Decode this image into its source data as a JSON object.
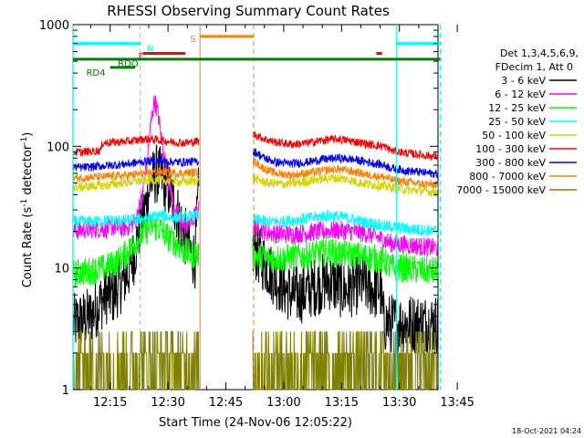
{
  "chart_data": {
    "type": "line",
    "title": "RHESSI Observing Summary Count Rates",
    "xlabel": "Start Time (24-Nov-06 12:05:22)",
    "ylabel_parts": [
      "Count Rate (s",
      "-1",
      " detector",
      "-1",
      ")"
    ],
    "yscale": "log",
    "ylim": [
      1,
      1000
    ],
    "xlim_min": [
      5.37,
      100.0
    ],
    "x_ticks": [
      {
        "min": 15,
        "label": "12:15"
      },
      {
        "min": 30,
        "label": "12:30"
      },
      {
        "min": 45,
        "label": "12:45"
      },
      {
        "min": 60,
        "label": "13:00"
      },
      {
        "min": 75,
        "label": "13:15"
      },
      {
        "min": 90,
        "label": "13:30"
      },
      {
        "min": 105,
        "label": "13:45"
      }
    ],
    "y_ticks": [
      {
        "v": 1,
        "label": "1"
      },
      {
        "v": 10,
        "label": "10"
      },
      {
        "v": 100,
        "label": "100"
      },
      {
        "v": 1000,
        "label": "1000"
      }
    ],
    "legend_header": [
      "Det 1,3,4,5,6,9,",
      "FDecim 1, Att 0"
    ],
    "footer_date": "18-Oct-2021 04:24",
    "gap": [
      38,
      52
    ],
    "series": [
      {
        "name": "3 - 6 keV",
        "color": "#000000",
        "points": [
          [
            5.4,
            3.5
          ],
          [
            10,
            4
          ],
          [
            12,
            5
          ],
          [
            14,
            6
          ],
          [
            16,
            6
          ],
          [
            17,
            7
          ],
          [
            18,
            7.5
          ],
          [
            19.5,
            9
          ],
          [
            21,
            12
          ],
          [
            22.5,
            20
          ],
          [
            24,
            30
          ],
          [
            25.5,
            50
          ],
          [
            27,
            60
          ],
          [
            28.5,
            55
          ],
          [
            30,
            45
          ],
          [
            31.5,
            35
          ],
          [
            33,
            25
          ],
          [
            34.5,
            18
          ],
          [
            36,
            13
          ],
          [
            37,
            12
          ],
          [
            37.9,
            40
          ],
          [
            52.5,
            14
          ],
          [
            54,
            12
          ],
          [
            56,
            10
          ],
          [
            58,
            8
          ],
          [
            60,
            7
          ],
          [
            62,
            6
          ],
          [
            64,
            6
          ],
          [
            66,
            6.5
          ],
          [
            68,
            7
          ],
          [
            70,
            7.5
          ],
          [
            72,
            7.8
          ],
          [
            74,
            7
          ],
          [
            76,
            6.5
          ],
          [
            78,
            7
          ],
          [
            80,
            7.5
          ],
          [
            82,
            7
          ],
          [
            84,
            6.5
          ],
          [
            85,
            7
          ],
          [
            86,
            3.5
          ],
          [
            88,
            3.5
          ],
          [
            92,
            3.5
          ],
          [
            96,
            3.5
          ],
          [
            100,
            3.5
          ]
        ],
        "noise": 0.25
      },
      {
        "name": "6 - 12 keV",
        "color": "#ff00ff",
        "points": [
          [
            5.4,
            20
          ],
          [
            10,
            21
          ],
          [
            14,
            21
          ],
          [
            16,
            22
          ],
          [
            18,
            21
          ],
          [
            20,
            22
          ],
          [
            21.5,
            24
          ],
          [
            23,
            35
          ],
          [
            24.5,
            70
          ],
          [
            25.5,
            150
          ],
          [
            26.5,
            240
          ],
          [
            27.5,
            180
          ],
          [
            28.5,
            100
          ],
          [
            30,
            55
          ],
          [
            31.5,
            32
          ],
          [
            33,
            25
          ],
          [
            34.5,
            22
          ],
          [
            36,
            24
          ],
          [
            37.9,
            30
          ],
          [
            52.5,
            22
          ],
          [
            55,
            20
          ],
          [
            58,
            19
          ],
          [
            62,
            19
          ],
          [
            66,
            19.5
          ],
          [
            70,
            20
          ],
          [
            74,
            20.5
          ],
          [
            78,
            20
          ],
          [
            82,
            19
          ],
          [
            86,
            17
          ],
          [
            88,
            16
          ],
          [
            92,
            15.5
          ],
          [
            96,
            15
          ],
          [
            100,
            14.5
          ]
        ],
        "noise": 0.08
      },
      {
        "name": "12 - 25 keV",
        "color": "#00ff00",
        "points": [
          [
            5.4,
            9
          ],
          [
            10,
            9.5
          ],
          [
            14,
            10
          ],
          [
            16,
            11
          ],
          [
            18,
            12
          ],
          [
            20,
            14
          ],
          [
            22,
            17
          ],
          [
            24,
            20
          ],
          [
            26,
            22
          ],
          [
            28,
            21
          ],
          [
            30,
            18
          ],
          [
            32,
            16
          ],
          [
            34,
            14
          ],
          [
            36,
            13
          ],
          [
            37.9,
            13
          ],
          [
            52.5,
            12.5
          ],
          [
            56,
            12
          ],
          [
            60,
            12
          ],
          [
            64,
            12.5
          ],
          [
            68,
            13
          ],
          [
            72,
            13.5
          ],
          [
            76,
            13
          ],
          [
            80,
            12.5
          ],
          [
            84,
            12
          ],
          [
            86,
            11.5
          ],
          [
            88,
            10
          ],
          [
            92,
            10
          ],
          [
            96,
            9.5
          ],
          [
            100,
            9.5
          ]
        ],
        "noise": 0.12
      },
      {
        "name": "25 - 50 keV",
        "color": "#00ffff",
        "points": [
          [
            5.4,
            24
          ],
          [
            10,
            24
          ],
          [
            14,
            24.5
          ],
          [
            18,
            24.5
          ],
          [
            22,
            25
          ],
          [
            25,
            26
          ],
          [
            28,
            27
          ],
          [
            31,
            26
          ],
          [
            34,
            26
          ],
          [
            37.9,
            27
          ],
          [
            52.5,
            25
          ],
          [
            56,
            24
          ],
          [
            60,
            24
          ],
          [
            64,
            25
          ],
          [
            68,
            26
          ],
          [
            72,
            27
          ],
          [
            76,
            26
          ],
          [
            80,
            24
          ],
          [
            84,
            23
          ],
          [
            86,
            22
          ],
          [
            88,
            22
          ],
          [
            92,
            21
          ],
          [
            96,
            20.5
          ],
          [
            100,
            20
          ]
        ],
        "noise": 0.05
      },
      {
        "name": "50 - 100 keV",
        "color": "#d4d400",
        "points": [
          [
            5.4,
            46
          ],
          [
            10,
            47
          ],
          [
            14,
            48
          ],
          [
            18,
            50
          ],
          [
            22,
            52
          ],
          [
            26,
            53
          ],
          [
            30,
            52
          ],
          [
            34,
            51
          ],
          [
            37.9,
            52
          ],
          [
            52.5,
            54
          ],
          [
            56,
            50
          ],
          [
            60,
            49
          ],
          [
            64,
            50
          ],
          [
            68,
            53
          ],
          [
            72,
            55
          ],
          [
            76,
            54
          ],
          [
            80,
            50
          ],
          [
            84,
            48
          ],
          [
            86,
            47
          ],
          [
            88,
            46
          ],
          [
            92,
            44
          ],
          [
            96,
            43
          ],
          [
            100,
            42
          ]
        ],
        "noise": 0.04
      },
      {
        "name": "100 - 300 keV",
        "color": "#ff0000",
        "points": [
          [
            5.4,
            89
          ],
          [
            8,
            90
          ],
          [
            11,
            91
          ],
          [
            12.6,
            93
          ],
          [
            13,
            107
          ],
          [
            16,
            108
          ],
          [
            18,
            109
          ],
          [
            20,
            110
          ],
          [
            22,
            112
          ],
          [
            24,
            115
          ],
          [
            26,
            114
          ],
          [
            28,
            112
          ],
          [
            30,
            110
          ],
          [
            32,
            108
          ],
          [
            34,
            107
          ],
          [
            36,
            108
          ],
          [
            37.9,
            110
          ],
          [
            52.5,
            125
          ],
          [
            55,
            115
          ],
          [
            58,
            108
          ],
          [
            62,
            104
          ],
          [
            66,
            106
          ],
          [
            70,
            112
          ],
          [
            74,
            115
          ],
          [
            78,
            110
          ],
          [
            82,
            104
          ],
          [
            86,
            100
          ],
          [
            88,
            92
          ],
          [
            92,
            88
          ],
          [
            96,
            85
          ],
          [
            100,
            82
          ]
        ],
        "noise": 0.035
      },
      {
        "name": "300 - 800 keV",
        "color": "#0000ff",
        "points": [
          [
            5.4,
            67
          ],
          [
            8,
            67
          ],
          [
            11,
            68
          ],
          [
            13,
            69
          ],
          [
            16,
            70
          ],
          [
            20,
            72
          ],
          [
            24,
            75
          ],
          [
            28,
            76
          ],
          [
            32,
            74
          ],
          [
            37.9,
            75
          ],
          [
            52.5,
            90
          ],
          [
            55,
            80
          ],
          [
            58,
            74
          ],
          [
            62,
            72
          ],
          [
            66,
            74
          ],
          [
            70,
            78
          ],
          [
            74,
            80
          ],
          [
            78,
            78
          ],
          [
            82,
            74
          ],
          [
            86,
            70
          ],
          [
            88,
            66
          ],
          [
            92,
            63
          ],
          [
            96,
            61
          ],
          [
            100,
            59
          ]
        ],
        "noise": 0.035
      },
      {
        "name": "800 - 7000 keV",
        "color": "#ff8000",
        "points": [
          [
            5.4,
            55
          ],
          [
            8,
            55
          ],
          [
            11,
            56
          ],
          [
            13,
            56
          ],
          [
            16,
            57
          ],
          [
            20,
            58
          ],
          [
            24,
            60
          ],
          [
            28,
            62
          ],
          [
            32,
            60
          ],
          [
            37.9,
            61
          ],
          [
            52.5,
            75
          ],
          [
            55,
            65
          ],
          [
            58,
            60
          ],
          [
            62,
            58
          ],
          [
            66,
            60
          ],
          [
            70,
            63
          ],
          [
            74,
            65
          ],
          [
            78,
            62
          ],
          [
            82,
            58
          ],
          [
            86,
            56
          ],
          [
            88,
            53
          ],
          [
            92,
            51
          ],
          [
            96,
            49
          ],
          [
            100,
            48
          ]
        ],
        "noise": 0.035
      },
      {
        "name": "7000 - 15000 keV",
        "color": "#808000",
        "points": [
          [
            5.4,
            1.5
          ],
          [
            37.9,
            1.5
          ],
          [
            52.5,
            1.5
          ],
          [
            100,
            1.5
          ]
        ],
        "noise": 0.5
      }
    ],
    "vlines": [
      {
        "x": 5.4,
        "color": "#00ffff",
        "dash": false
      },
      {
        "x": 22.8,
        "color": "#00ffff",
        "dash": true
      },
      {
        "x": 89.2,
        "color": "#00ffff",
        "dash": false
      },
      {
        "x": 100.6,
        "color": "#00ffff",
        "dash": true
      },
      {
        "x": 38.3,
        "color": "#ff8000",
        "dash": false
      },
      {
        "x": 52.2,
        "color": "#ff8000",
        "dash": true
      }
    ],
    "flags": [
      {
        "label": "N",
        "color": "#00ffff",
        "x1": 5.4,
        "x2": 22.8,
        "v": 700,
        "text_x": 24.5,
        "text_v": 600
      },
      {
        "label": "",
        "color": "#00ffff",
        "x1": 89.2,
        "x2": 100.6,
        "v": 700
      },
      {
        "label": "F",
        "color": "#ff0000",
        "x1": 23.5,
        "x2": 34.5,
        "v": 580,
        "text_x": 22.3,
        "text_v": 520
      },
      {
        "label": "",
        "color": "#ff0000",
        "x1": 84.0,
        "x2": 85.5,
        "v": 580
      },
      {
        "label": "S",
        "color": "#ff8000",
        "x1": 38.3,
        "x2": 52.2,
        "v": 800,
        "text_x": 35.7,
        "text_v": 720
      },
      {
        "label": "RDO",
        "color": "#008000",
        "x1": 5.4,
        "x2": 100.6,
        "v": 520,
        "text_x": 17.0,
        "text_v": 450
      },
      {
        "label": "RD4",
        "color": "#008000",
        "x1": 15.0,
        "x2": 21.5,
        "v": 445,
        "text_x": 8.8,
        "text_v": 380
      }
    ]
  }
}
